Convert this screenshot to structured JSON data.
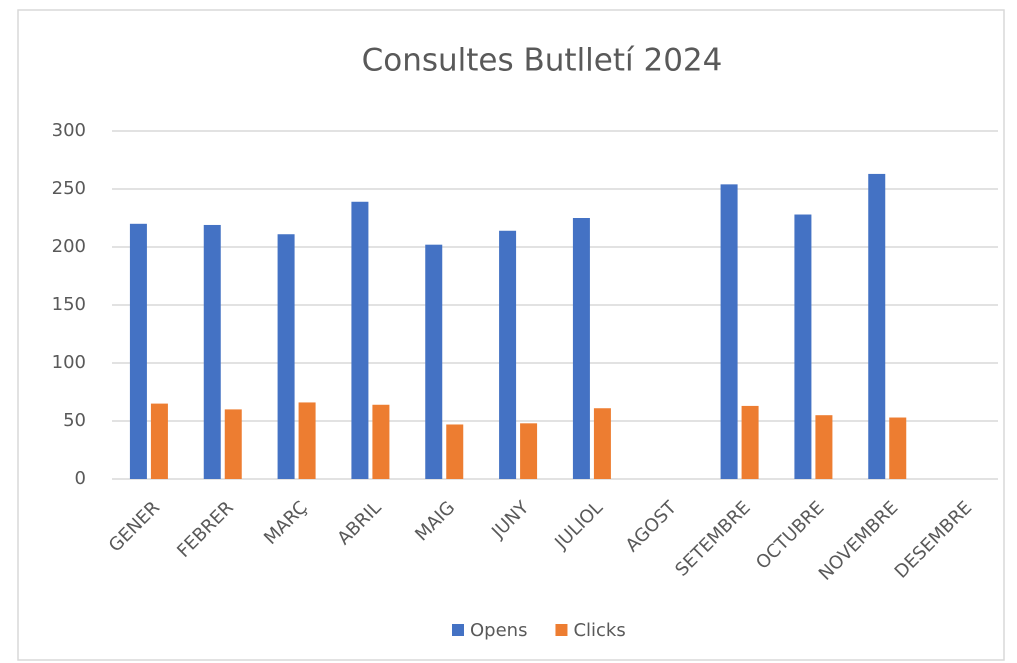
{
  "chart_data": {
    "type": "bar",
    "title": "Consultes Butlletí 2024",
    "categories": [
      "GENER",
      "FEBRER",
      "MARÇ",
      "ABRIL",
      "MAIG",
      "JUNY",
      "JULIOL",
      "AGOST",
      "SETEMBRE",
      "OCTUBRE",
      "NOVEMBRE",
      "DESEMBRE"
    ],
    "series": [
      {
        "name": "Opens",
        "color": "#4472c4",
        "values": [
          220,
          219,
          211,
          239,
          202,
          214,
          225,
          null,
          254,
          228,
          263,
          null
        ]
      },
      {
        "name": "Clicks",
        "color": "#ed7d31",
        "values": [
          65,
          60,
          66,
          64,
          47,
          48,
          61,
          null,
          63,
          55,
          53,
          null
        ]
      }
    ],
    "ylim": [
      0,
      300
    ],
    "yticks": [
      0,
      50,
      100,
      150,
      200,
      250,
      300
    ],
    "grid": true,
    "legend": "bottom"
  }
}
